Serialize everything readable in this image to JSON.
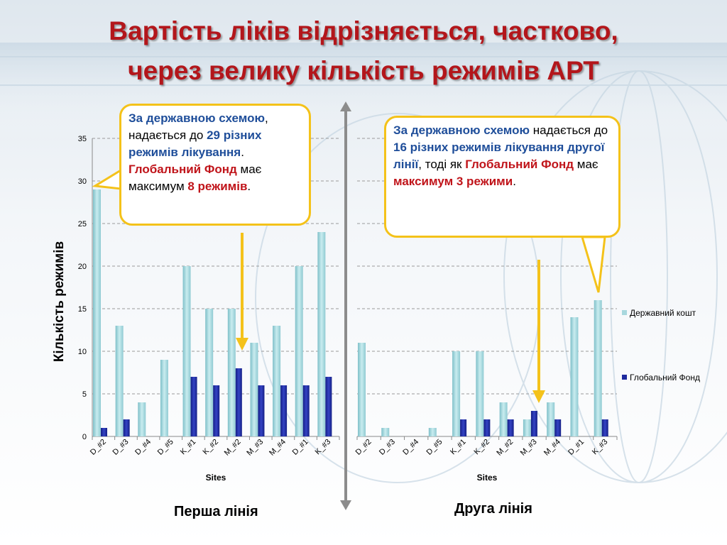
{
  "title": {
    "line1": "Вартість ліків відрізняється, частково,",
    "line2": "через велику кількість режимів АРТ"
  },
  "colors": {
    "state": "#a8d8de",
    "global": "#1e2a9e",
    "title": "#b3161b",
    "callout_border": "#f4c21a",
    "arrow": "#f4c21a"
  },
  "callout1": {
    "a": "За державною схемою",
    "b": ", надається до ",
    "c": "29 різних режимів лікування",
    "d": ".",
    "e": "Глобальний Фонд",
    "f": " має максимум ",
    "g": "8 режимів",
    "h": "."
  },
  "callout2": {
    "a": "За державною схемою",
    "b": " надається до ",
    "c": "16 різних режимів лікування другої лінії",
    "d": ", тоді як ",
    "e": "Глобальний Фонд",
    "f": " має ",
    "g": "максимум 3 режими",
    "h": "."
  },
  "panels": {
    "first": "Перша лінія",
    "second": "Друга лінія"
  },
  "legend": {
    "state": "Державний кошт",
    "global": "Глобальний Фонд"
  },
  "chart_data": [
    {
      "type": "bar",
      "title": "",
      "xlabel": "Sites",
      "ylabel": "Кількість режимів",
      "ylim": [
        0,
        35
      ],
      "yticks": [
        0,
        5,
        10,
        15,
        20,
        25,
        30,
        35
      ],
      "grid": true,
      "categories": [
        "D_#2",
        "D_#3",
        "D_#4",
        "D_#5",
        "K_#1",
        "K_#2",
        "M_#2",
        "M_#3",
        "M_#4",
        "D_#1",
        "K_#3"
      ],
      "series": [
        {
          "name": "Державний кошт",
          "values": [
            29,
            13,
            4,
            9,
            20,
            15,
            15,
            11,
            13,
            20,
            24
          ]
        },
        {
          "name": "Глобальний Фонд",
          "values": [
            1,
            2,
            0,
            0,
            7,
            6,
            8,
            6,
            6,
            6,
            7
          ]
        }
      ]
    },
    {
      "type": "bar",
      "title": "",
      "xlabel": "Sites",
      "ylabel": "",
      "ylim": [
        0,
        35
      ],
      "grid": true,
      "legend_position": "right",
      "categories": [
        "D_#2",
        "D_#3",
        "D_#4",
        "D_#5",
        "K_#1",
        "K_#2",
        "M_#2",
        "M_#3",
        "M_#4",
        "D_#1",
        "K_#3"
      ],
      "series": [
        {
          "name": "Державний кошт",
          "values": [
            11,
            1,
            0,
            1,
            10,
            10,
            4,
            2,
            4,
            14,
            16
          ]
        },
        {
          "name": "Глобальний Фонд",
          "values": [
            0,
            0,
            0,
            0,
            2,
            2,
            2,
            3,
            2,
            0,
            2
          ]
        }
      ]
    }
  ]
}
